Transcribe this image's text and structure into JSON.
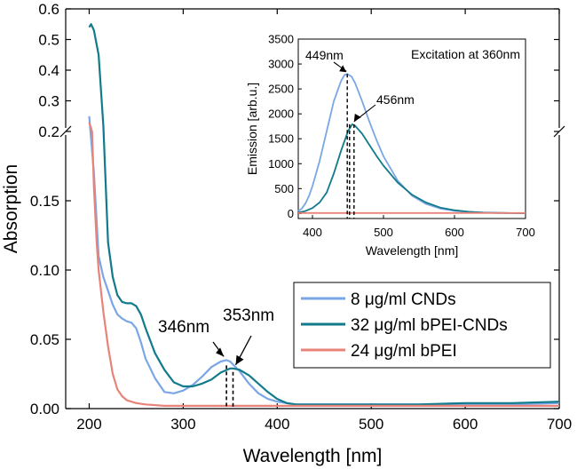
{
  "chart_data": [
    {
      "id": "main",
      "type": "line",
      "title": "",
      "xlabel": "Wavelength [nm]",
      "ylabel": "Absorption",
      "xlim": [
        175,
        700
      ],
      "x_ticks": [
        200,
        300,
        400,
        500,
        600,
        700
      ],
      "y_axis_break": true,
      "ylim_lower": [
        0.0,
        0.2
      ],
      "ylim_upper": [
        0.2,
        0.6
      ],
      "y_ticks_lower": [
        "0.00",
        "0.05",
        "0.10",
        "0.15"
      ],
      "y_ticks_upper": [
        "0.2",
        "0.3",
        "0.4",
        "0.5",
        "0.6"
      ],
      "legend_position": "lower-right",
      "series": [
        {
          "name": "8 μg/ml CNDs",
          "color": "#7aa6e6",
          "x": [
            200,
            205,
            210,
            215,
            220,
            225,
            230,
            235,
            240,
            245,
            250,
            255,
            260,
            270,
            280,
            290,
            300,
            310,
            320,
            330,
            340,
            346,
            350,
            360,
            370,
            380,
            390,
            400,
            410,
            420,
            430,
            450,
            500,
            550,
            600,
            650,
            700
          ],
          "y": [
            0.25,
            0.17,
            0.11,
            0.095,
            0.085,
            0.075,
            0.068,
            0.065,
            0.063,
            0.062,
            0.058,
            0.048,
            0.036,
            0.022,
            0.012,
            0.011,
            0.013,
            0.017,
            0.023,
            0.03,
            0.034,
            0.035,
            0.034,
            0.027,
            0.018,
            0.011,
            0.007,
            0.005,
            0.004,
            0.003,
            0.003,
            0.003,
            0.003,
            0.003,
            0.003,
            0.003,
            0.004
          ]
        },
        {
          "name": "32 μg/ml bPEI-CNDs",
          "color": "#117a8b",
          "x": [
            200,
            202,
            205,
            210,
            215,
            220,
            225,
            230,
            235,
            240,
            245,
            250,
            255,
            260,
            270,
            280,
            290,
            300,
            310,
            320,
            330,
            340,
            350,
            353,
            360,
            370,
            380,
            390,
            400,
            410,
            420,
            430,
            450,
            500,
            550,
            600,
            650,
            700
          ],
          "y": [
            0.54,
            0.55,
            0.53,
            0.45,
            0.22,
            0.12,
            0.095,
            0.082,
            0.077,
            0.076,
            0.076,
            0.074,
            0.068,
            0.058,
            0.04,
            0.028,
            0.019,
            0.016,
            0.016,
            0.018,
            0.021,
            0.026,
            0.029,
            0.029,
            0.028,
            0.024,
            0.018,
            0.012,
            0.007,
            0.004,
            0.003,
            0.003,
            0.003,
            0.003,
            0.003,
            0.004,
            0.004,
            0.005
          ]
        },
        {
          "name": "24 μg/ml bPEI",
          "color": "#e8837a",
          "x": [
            200,
            203,
            205,
            208,
            210,
            215,
            220,
            225,
            230,
            235,
            240,
            250,
            260,
            280,
            300,
            350,
            400,
            500,
            600,
            700
          ],
          "y": [
            0.23,
            0.2,
            0.16,
            0.12,
            0.1,
            0.07,
            0.045,
            0.025,
            0.014,
            0.009,
            0.006,
            0.004,
            0.003,
            0.002,
            0.002,
            0.002,
            0.002,
            0.002,
            0.002,
            0.002
          ]
        }
      ],
      "annotations": [
        {
          "label": "346nm",
          "x": 346,
          "y": 0.035
        },
        {
          "label": "353nm",
          "x": 353,
          "y": 0.029
        }
      ]
    },
    {
      "id": "inset",
      "type": "line",
      "title": "Excitation at 360nm",
      "xlabel": "Wavelength [nm]",
      "ylabel": "Emission [arb.u.]",
      "xlim": [
        380,
        700
      ],
      "ylim": [
        -100,
        3500
      ],
      "x_ticks": [
        400,
        500,
        600,
        700
      ],
      "y_ticks": [
        0,
        500,
        1000,
        1500,
        2000,
        2500,
        3000,
        3500
      ],
      "series": [
        {
          "name": "8 μg/ml CNDs",
          "color": "#7aa6e6",
          "x": [
            380,
            385,
            390,
            395,
            400,
            410,
            420,
            430,
            440,
            445,
            449,
            455,
            460,
            470,
            480,
            490,
            500,
            520,
            540,
            560,
            580,
            600,
            620,
            640,
            660,
            680,
            700
          ],
          "y": [
            50,
            100,
            200,
            350,
            550,
            1050,
            1650,
            2250,
            2650,
            2780,
            2800,
            2750,
            2620,
            2250,
            1850,
            1480,
            1150,
            660,
            360,
            190,
            100,
            55,
            30,
            20,
            12,
            8,
            5
          ]
        },
        {
          "name": "32 μg/ml bPEI-CNDs",
          "color": "#117a8b",
          "x": [
            380,
            390,
            400,
            410,
            420,
            430,
            440,
            450,
            456,
            460,
            470,
            480,
            490,
            500,
            520,
            540,
            560,
            580,
            600,
            620,
            640,
            660,
            680,
            700
          ],
          "y": [
            20,
            50,
            110,
            220,
            420,
            800,
            1250,
            1650,
            1790,
            1760,
            1600,
            1380,
            1160,
            960,
            620,
            380,
            220,
            120,
            65,
            35,
            20,
            12,
            8,
            5
          ]
        },
        {
          "name": "24 μg/ml bPEI",
          "color": "#e8837a",
          "x": [
            380,
            700
          ],
          "y": [
            10,
            10
          ]
        }
      ],
      "annotations": [
        {
          "label": "449nm",
          "x": 449,
          "y": 2800
        },
        {
          "label": "456nm",
          "x": 456,
          "y": 1790
        }
      ]
    }
  ]
}
